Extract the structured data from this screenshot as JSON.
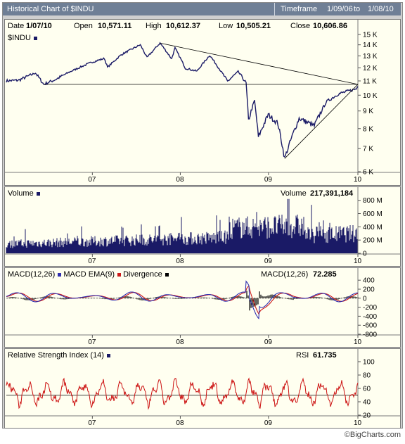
{
  "window": {
    "title": "Historical Chart of $INDU",
    "timeframe_label": "Timeframe",
    "timeframe_from": "1/09/06",
    "timeframe_to_word": "to",
    "timeframe_to": "1/08/10"
  },
  "quote": {
    "date_label": "Date",
    "date": "1/07/10",
    "open_label": "Open",
    "open": "10,571.11",
    "high_label": "High",
    "high": "10,612.37",
    "low_label": "Low",
    "low": "10,505.21",
    "close_label": "Close",
    "close": "10,606.86"
  },
  "footer": "©BigCharts.com",
  "colors": {
    "price": "#1a1a66",
    "macd": "#3030b0",
    "ema": "#cc1a1a",
    "rsi": "#cc1111",
    "panel_bg": "#fffff0"
  },
  "chart_data": [
    {
      "type": "line",
      "name_label": "$INDU",
      "x_ticks": [
        "07",
        "08",
        "09",
        "10"
      ],
      "y_ticks": [
        "15 K",
        "14 K",
        "13 K",
        "12 K",
        "11 K",
        "10 K",
        "9 K",
        "8 K",
        "7 K",
        "6 K"
      ],
      "ylim": [
        6000,
        15500
      ],
      "log_scale": true,
      "series_points": [
        [
          "2006-01-09",
          11000
        ],
        [
          "2006-03-01",
          11050
        ],
        [
          "2006-05-10",
          11600
        ],
        [
          "2006-06-13",
          10750
        ],
        [
          "2006-08-01",
          11100
        ],
        [
          "2006-10-01",
          11700
        ],
        [
          "2006-12-29",
          12460
        ],
        [
          "2007-02-20",
          12780
        ],
        [
          "2007-03-05",
          12050
        ],
        [
          "2007-05-01",
          13100
        ],
        [
          "2007-07-19",
          14000
        ],
        [
          "2007-08-16",
          12850
        ],
        [
          "2007-10-09",
          14160
        ],
        [
          "2007-11-26",
          12750
        ],
        [
          "2007-12-10",
          13700
        ],
        [
          "2008-01-22",
          11970
        ],
        [
          "2008-03-10",
          11740
        ],
        [
          "2008-05-02",
          13050
        ],
        [
          "2008-07-15",
          10960
        ],
        [
          "2008-08-28",
          11700
        ],
        [
          "2008-09-30",
          10850
        ],
        [
          "2008-10-10",
          8450
        ],
        [
          "2008-11-04",
          9650
        ],
        [
          "2008-11-20",
          7550
        ],
        [
          "2008-12-31",
          8780
        ],
        [
          "2009-02-09",
          8280
        ],
        [
          "2009-03-09",
          6550
        ],
        [
          "2009-05-08",
          8570
        ],
        [
          "2009-07-10",
          8150
        ],
        [
          "2009-08-28",
          9550
        ],
        [
          "2009-10-19",
          10090
        ],
        [
          "2009-12-31",
          10430
        ],
        [
          "2010-01-07",
          10607
        ]
      ],
      "trendlines": [
        [
          [
            "2006-06-13",
            10750
          ],
          [
            "2010-01-07",
            10750
          ]
        ],
        [
          [
            "2007-10-09",
            14160
          ],
          [
            "2010-01-07",
            10750
          ]
        ],
        [
          [
            "2009-03-09",
            6550
          ],
          [
            "2010-01-07",
            10750
          ]
        ]
      ]
    },
    {
      "type": "bar",
      "name_label": "Volume",
      "value_label": "Volume",
      "value": "217,391,184",
      "x_ticks": [
        "07",
        "08",
        "09",
        "10"
      ],
      "y_ticks": [
        "800 M",
        "600 M",
        "400 M",
        "200 M",
        "0"
      ],
      "ylim": [
        0,
        850000000
      ]
    },
    {
      "type": "line",
      "name_label": "MACD(12,26)",
      "legend": [
        "MACD EMA(9)",
        "Divergence"
      ],
      "value_label": "MACD(12,26)",
      "value": "72.285",
      "x_ticks": [
        "07",
        "08",
        "09",
        "10"
      ],
      "y_ticks": [
        "400",
        "200",
        "0",
        "-200",
        "-400",
        "-600",
        "-800"
      ],
      "ylim": [
        -800,
        450
      ]
    },
    {
      "type": "line",
      "name_label": "Relative Strength Index (14)",
      "value_label": "RSI",
      "value": "61.735",
      "x_ticks": [
        "07",
        "08",
        "09",
        "10"
      ],
      "y_ticks": [
        "100",
        "80",
        "60",
        "40",
        "20"
      ],
      "ylim": [
        20,
        100
      ],
      "reference_line": 50
    }
  ]
}
